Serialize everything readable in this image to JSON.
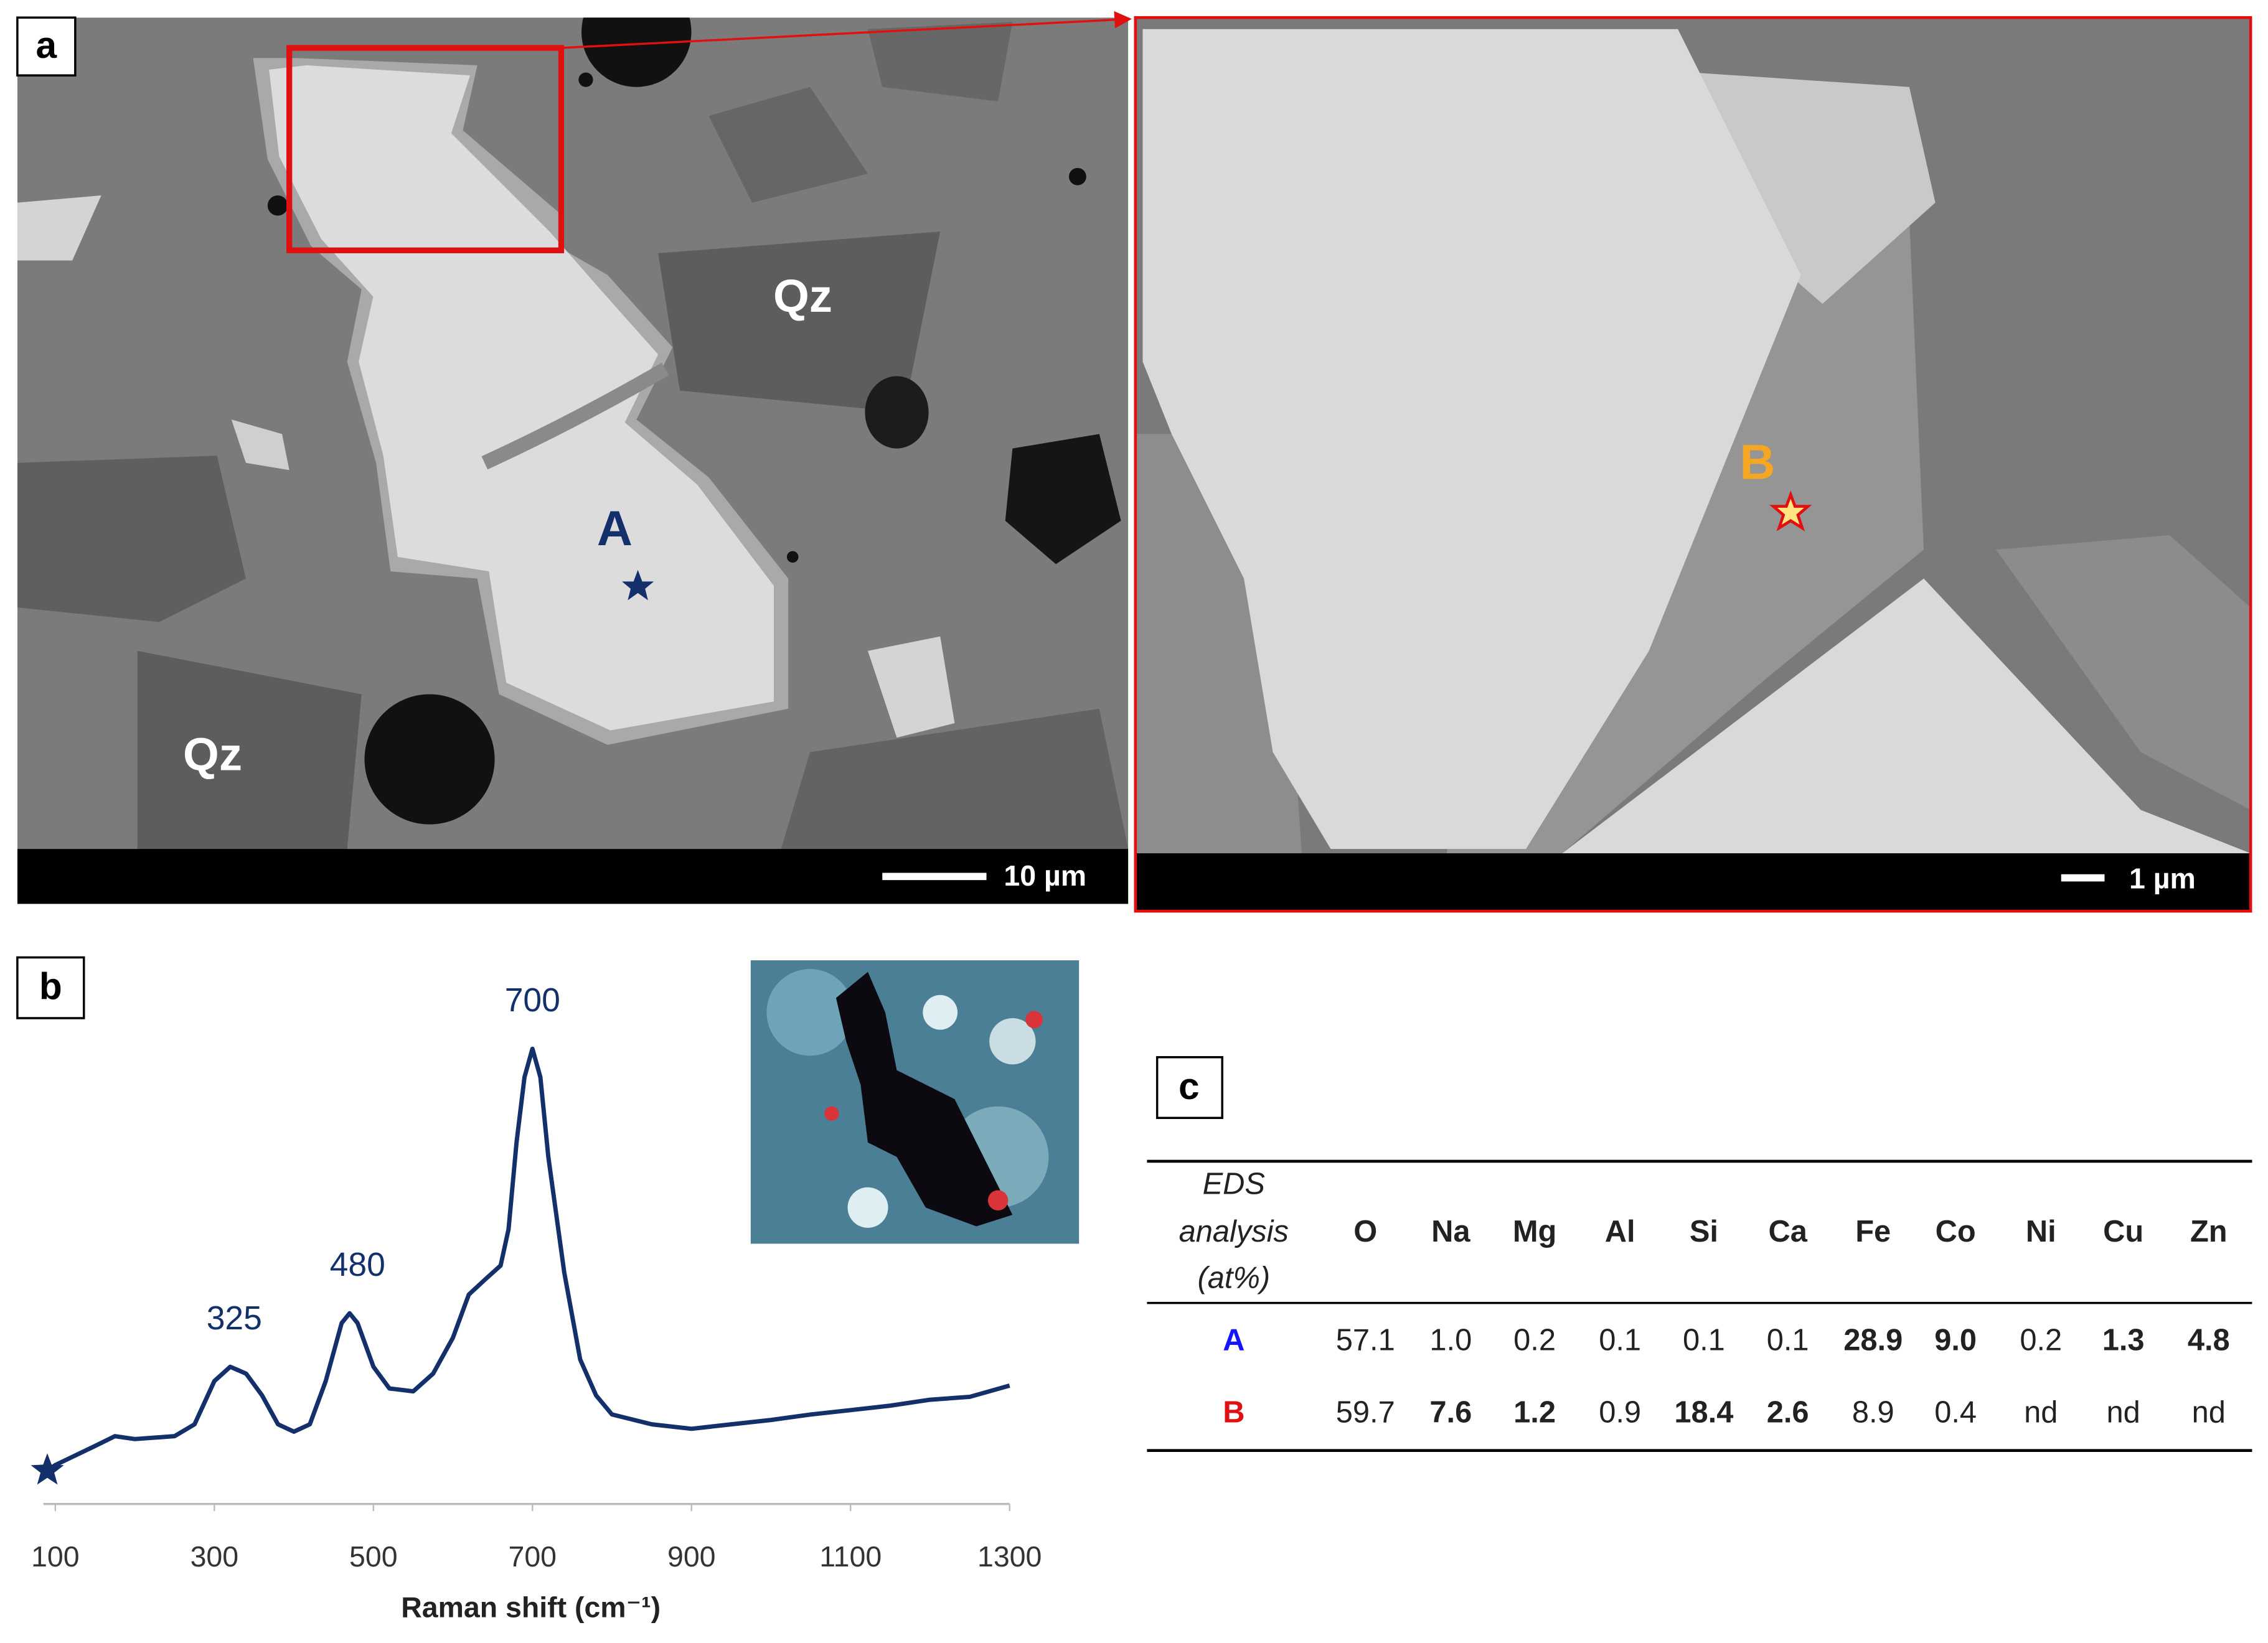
{
  "panel_a": {
    "label": "a",
    "mineral_labels": [
      "Qz",
      "Qz"
    ],
    "point_labels": [
      "A",
      "B"
    ],
    "scale_bars": [
      "10 µm",
      "1 µm"
    ]
  },
  "panel_b": {
    "label": "b"
  },
  "chart_data": {
    "type": "line",
    "xlabel": "Raman shift (cm⁻¹)",
    "color": "#13306b",
    "x": [
      90,
      100,
      150,
      175,
      200,
      250,
      275,
      300,
      320,
      340,
      360,
      380,
      400,
      420,
      440,
      460,
      470,
      480,
      500,
      520,
      550,
      575,
      600,
      620,
      640,
      660,
      670,
      680,
      690,
      700,
      710,
      720,
      740,
      760,
      780,
      800,
      850,
      900,
      950,
      1000,
      1050,
      1100,
      1150,
      1200,
      1250,
      1300
    ],
    "values": [
      6.8,
      7.9,
      11.8,
      13.8,
      13.2,
      13.8,
      16.2,
      25.0,
      27.9,
      26.5,
      22.1,
      16.2,
      14.7,
      16.2,
      25.0,
      36.8,
      38.8,
      36.8,
      27.9,
      23.5,
      22.9,
      26.5,
      33.8,
      42.6,
      45.6,
      48.5,
      55.9,
      73.5,
      86.8,
      92.6,
      86.8,
      70.6,
      47.1,
      29.4,
      22.1,
      18.2,
      16.2,
      15.3,
      16.2,
      17.1,
      18.2,
      19.1,
      20.0,
      21.2,
      21.8,
      24.1
    ],
    "xlim": [
      85,
      1300
    ],
    "xticks": [
      100,
      300,
      500,
      700,
      900,
      1100,
      1300
    ],
    "ylim": [
      0,
      100
    ],
    "peaks": [
      325,
      480,
      700
    ]
  },
  "panel_c": {
    "label": "c",
    "table": {
      "header_label": [
        "EDS",
        "analysis",
        "(at%)"
      ],
      "columns": [
        "O",
        "Na",
        "Mg",
        "Al",
        "Si",
        "Ca",
        "Fe",
        "Co",
        "Ni",
        "Cu",
        "Zn"
      ],
      "rows": [
        {
          "label": "A",
          "color": "#1414ff",
          "cells": [
            "57.1",
            "1.0",
            "0.2",
            "0.1",
            "0.1",
            "0.1",
            "28.9",
            "9.0",
            "0.2",
            "1.3",
            "4.8"
          ],
          "bold": [
            false,
            false,
            false,
            false,
            false,
            false,
            true,
            true,
            false,
            true,
            true
          ]
        },
        {
          "label": "B",
          "color": "#e01010",
          "cells": [
            "59.7",
            "7.6",
            "1.2",
            "0.9",
            "18.4",
            "2.6",
            "8.9",
            "0.4",
            "nd",
            "nd",
            "nd"
          ],
          "bold": [
            false,
            true,
            true,
            false,
            true,
            true,
            false,
            false,
            false,
            false,
            false
          ]
        }
      ]
    }
  }
}
